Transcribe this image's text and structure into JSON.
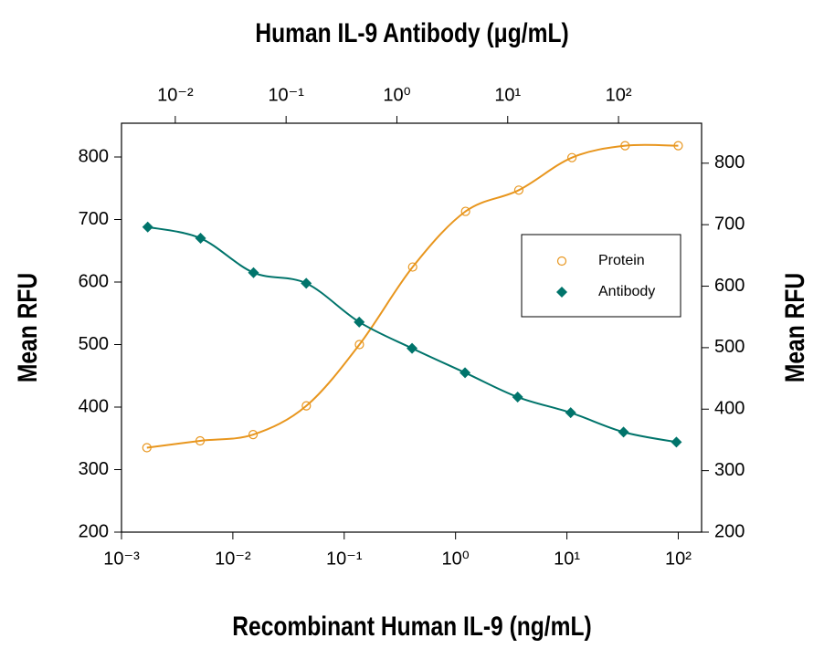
{
  "chart_data": {
    "type": "scatter",
    "x2label": "Human IL-9 Antibody (μg/mL)",
    "xlabel": "Recombinant Human IL-9 (ng/mL)",
    "ylabel": "Mean RFU",
    "y2label": "Mean RFU",
    "xscale": "log",
    "x2scale": "log",
    "xlim": [
      0.001,
      162
    ],
    "x2lim": [
      0.00327,
      562
    ],
    "ylim": [
      200,
      854
    ],
    "y2lim": [
      200,
      865
    ],
    "xticks": [
      {
        "value": 0.001,
        "label": "10⁻³"
      },
      {
        "value": 0.01,
        "label": "10⁻²"
      },
      {
        "value": 0.1,
        "label": "10⁻¹"
      },
      {
        "value": 1,
        "label": "10⁰"
      },
      {
        "value": 10,
        "label": "10¹"
      },
      {
        "value": 100,
        "label": "10²"
      }
    ],
    "x2ticks": [
      {
        "value": 0.01,
        "label": "10⁻²"
      },
      {
        "value": 0.1,
        "label": "10⁻¹"
      },
      {
        "value": 1,
        "label": "10⁰"
      },
      {
        "value": 10,
        "label": "10¹"
      },
      {
        "value": 100,
        "label": "10²"
      }
    ],
    "yticks": [
      200,
      300,
      400,
      500,
      600,
      700,
      800
    ],
    "y2ticks": [
      200,
      300,
      400,
      500,
      600,
      700,
      800
    ],
    "legend": "right",
    "fit_line": true,
    "series": [
      {
        "name": "Protein",
        "color": "#e8961e",
        "marker": "circle",
        "x": [
          0.00169,
          0.00508,
          0.0152,
          0.0457,
          0.137,
          0.412,
          1.23,
          3.7,
          11.1,
          33.3,
          100
        ],
        "values": [
          335,
          346,
          356,
          402,
          500,
          624,
          713,
          747,
          799,
          818,
          818
        ]
      },
      {
        "name": "Antibody",
        "color": "#00746b",
        "marker": "diamond",
        "axis": "x2",
        "x": [
          0.00564,
          0.0169,
          0.0508,
          0.152,
          0.457,
          1.37,
          4.12,
          12.3,
          37,
          111,
          333
        ],
        "values": [
          688,
          670,
          615,
          598,
          536,
          494,
          455,
          416,
          391,
          360,
          344
        ]
      }
    ]
  }
}
